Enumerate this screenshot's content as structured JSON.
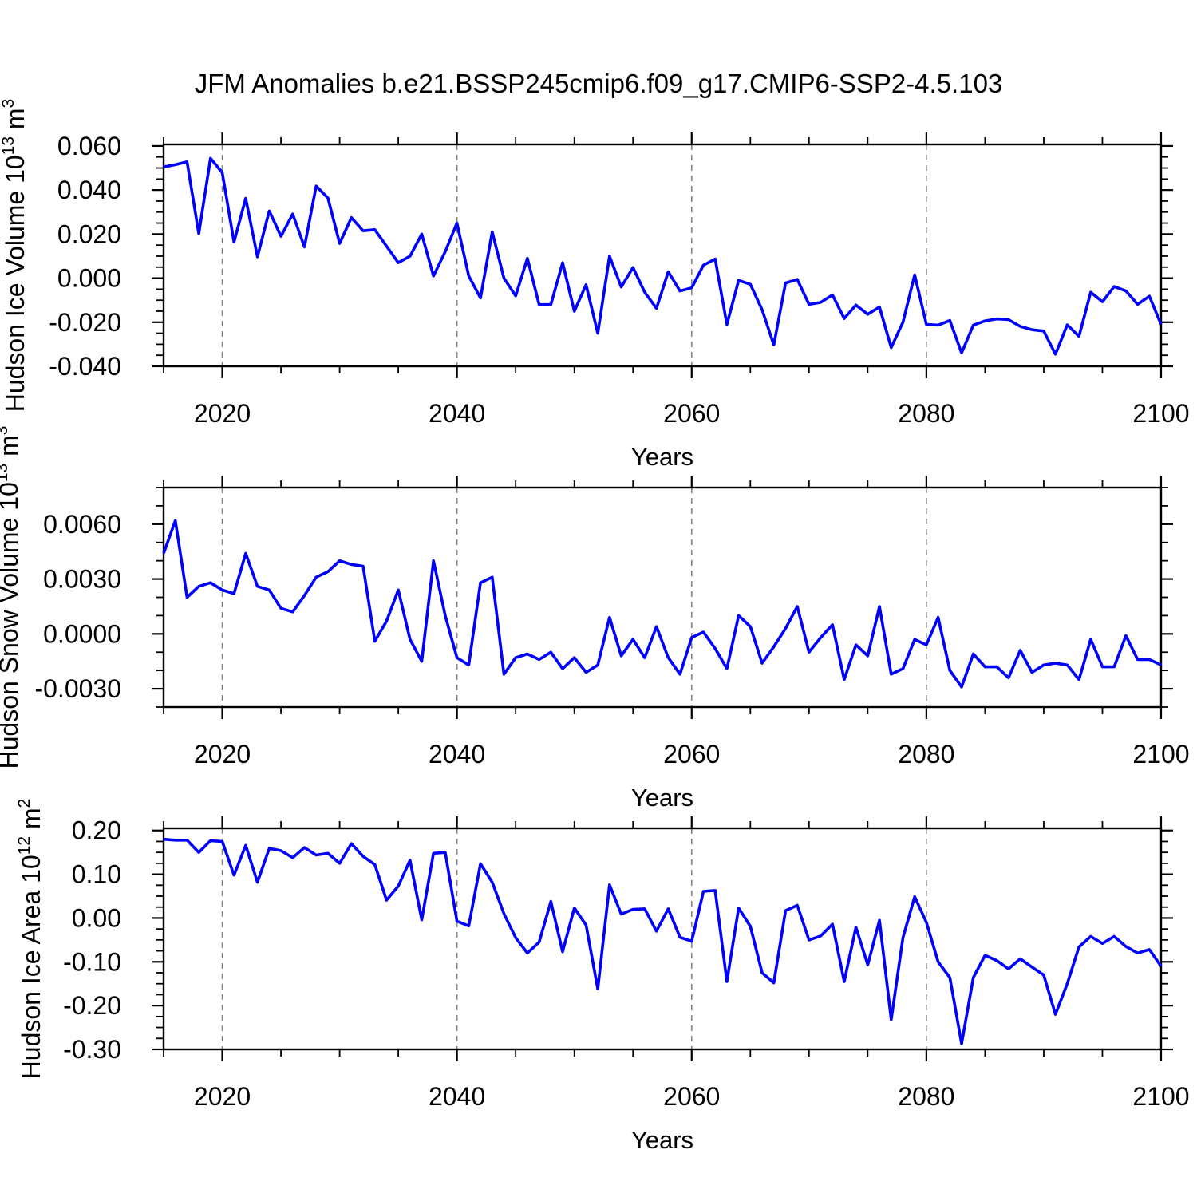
{
  "title": "JFM Anomalies b.e21.BSSP245cmip6.f09_g17.CMIP6-SSP2-4.5.103",
  "background": "#ffffff",
  "text_color": "#000000",
  "grid_color": "#848484",
  "chart_data": [
    {
      "type": "line",
      "name": "hudson-ice-volume",
      "ylabel": "Hudson Ice Volume 10^13^ m^3^",
      "xlabel": "Years",
      "line_color": "#0000ff",
      "x_start": 2015,
      "x_end": 2100,
      "x_step": 1,
      "ylim": [
        -0.04,
        0.0607
      ],
      "ytick_values": [
        0.06,
        0.04,
        0.02,
        0.0,
        -0.02,
        -0.04
      ],
      "ytick_labels": [
        "0.060",
        "0.040",
        "0.020",
        "0.000",
        "-0.020",
        "-0.040"
      ],
      "yminor_step": 0.005,
      "xtick_values": [
        2020,
        2040,
        2060,
        2080,
        2100
      ],
      "xtick_labels": [
        "2020",
        "2040",
        "2060",
        "2080",
        "2100"
      ],
      "xminor_step": 5,
      "x_gridlines": [
        2020,
        2040,
        2060,
        2080
      ],
      "values": [
        0.0505,
        0.0515,
        0.0528,
        0.0202,
        0.0544,
        0.0479,
        0.0164,
        0.0362,
        0.0097,
        0.0305,
        0.019,
        0.0291,
        0.0142,
        0.0418,
        0.0364,
        0.0158,
        0.0275,
        0.0215,
        0.022,
        0.0145,
        0.007,
        0.01,
        0.02,
        0.001,
        0.012,
        0.025,
        0.001,
        -0.009,
        0.021,
        0.0,
        -0.008,
        0.009,
        -0.012,
        -0.012,
        0.007,
        -0.015,
        -0.003,
        -0.025,
        0.01,
        -0.004,
        0.0048,
        -0.0064,
        -0.0137,
        0.0029,
        -0.0058,
        -0.0044,
        0.0059,
        0.0087,
        -0.021,
        -0.001,
        -0.0028,
        -0.0143,
        -0.0303,
        -0.0022,
        -0.0006,
        -0.0119,
        -0.011,
        -0.0076,
        -0.0183,
        -0.0122,
        -0.0164,
        -0.0131,
        -0.0315,
        -0.02,
        0.0015,
        -0.021,
        -0.0213,
        -0.0192,
        -0.0339,
        -0.0213,
        -0.0194,
        -0.0185,
        -0.0188,
        -0.0219,
        -0.0234,
        -0.024,
        -0.0345,
        -0.0212,
        -0.0264,
        -0.0064,
        -0.0107,
        -0.0038,
        -0.0058,
        -0.0119,
        -0.0082,
        -0.021
      ]
    },
    {
      "type": "line",
      "name": "hudson-snow-volume",
      "ylabel": "Hudson Snow Volume 10^13^ m^3^",
      "xlabel": "Years",
      "line_color": "#0000ff",
      "x_start": 2015,
      "x_end": 2100,
      "x_step": 1,
      "ylim": [
        -0.004,
        0.008
      ],
      "ytick_values": [
        0.006,
        0.003,
        0.0,
        -0.003
      ],
      "ytick_labels": [
        "0.0060",
        "0.0030",
        "0.0000",
        "-0.0030"
      ],
      "yminor_step": 0.001,
      "xtick_values": [
        2020,
        2040,
        2060,
        2080,
        2100
      ],
      "xtick_labels": [
        "2020",
        "2040",
        "2060",
        "2080",
        "2100"
      ],
      "xminor_step": 5,
      "x_gridlines": [
        2020,
        2040,
        2060,
        2080
      ],
      "values": [
        0.0044,
        0.0062,
        0.002,
        0.0026,
        0.0028,
        0.0024,
        0.0022,
        0.0044,
        0.0026,
        0.0024,
        0.0014,
        0.0012,
        0.0021,
        0.0031,
        0.0034,
        0.004,
        0.0038,
        0.0037,
        -0.0004,
        0.0007,
        0.0024,
        -0.0003,
        -0.0015,
        0.004,
        0.001,
        -0.0013,
        -0.0017,
        0.0028,
        0.0031,
        -0.0022,
        -0.0013,
        -0.0011,
        -0.0014,
        -0.001,
        -0.0019,
        -0.0013,
        -0.0021,
        -0.0017,
        0.0009,
        -0.0012,
        -0.0003,
        -0.0013,
        0.0004,
        -0.0013,
        -0.0022,
        -0.0002,
        0.0001,
        -0.0008,
        -0.0019,
        0.001,
        0.0004,
        -0.0016,
        -0.0007,
        0.0003,
        0.0015,
        -0.001,
        -0.0002,
        0.0005,
        -0.0025,
        -0.0006,
        -0.0012,
        0.0015,
        -0.0022,
        -0.0019,
        -0.0003,
        -0.0006,
        0.0009,
        -0.002,
        -0.0029,
        -0.0011,
        -0.0018,
        -0.0018,
        -0.0024,
        -0.0009,
        -0.0021,
        -0.0017,
        -0.0016,
        -0.0017,
        -0.0025,
        -0.0003,
        -0.0018,
        -0.0018,
        -0.0001,
        -0.0014,
        -0.0014,
        -0.0017
      ]
    },
    {
      "type": "line",
      "name": "hudson-ice-area",
      "ylabel": "Hudson Ice Area 10^12^ m^2^",
      "xlabel": "Years",
      "line_color": "#0000ff",
      "x_start": 2015,
      "x_end": 2100,
      "x_step": 1,
      "ylim": [
        -0.3,
        0.205
      ],
      "ytick_values": [
        0.2,
        0.1,
        0.0,
        -0.1,
        -0.2,
        -0.3
      ],
      "ytick_labels": [
        "0.20",
        "0.10",
        "0.00",
        "-0.10",
        "-0.20",
        "-0.30"
      ],
      "yminor_step": 0.025,
      "xtick_values": [
        2020,
        2040,
        2060,
        2080,
        2100
      ],
      "xtick_labels": [
        "2020",
        "2040",
        "2060",
        "2080",
        "2100"
      ],
      "xminor_step": 5,
      "x_gridlines": [
        2020,
        2040,
        2060,
        2080
      ],
      "values": [
        0.18,
        0.178,
        0.178,
        0.15,
        0.177,
        0.175,
        0.098,
        0.166,
        0.082,
        0.159,
        0.154,
        0.138,
        0.161,
        0.144,
        0.148,
        0.125,
        0.17,
        0.141,
        0.122,
        0.041,
        0.073,
        0.132,
        -0.004,
        0.148,
        0.15,
        -0.007,
        -0.018,
        0.124,
        0.082,
        0.01,
        -0.045,
        -0.08,
        -0.055,
        0.038,
        -0.077,
        0.023,
        -0.016,
        -0.162,
        0.076,
        0.009,
        0.02,
        0.021,
        -0.03,
        0.021,
        -0.044,
        -0.053,
        0.061,
        0.063,
        -0.145,
        0.023,
        -0.019,
        -0.125,
        -0.148,
        0.017,
        0.029,
        -0.05,
        -0.041,
        -0.014,
        -0.145,
        -0.021,
        -0.107,
        -0.005,
        -0.232,
        -0.045,
        0.049,
        -0.01,
        -0.1,
        -0.136,
        -0.287,
        -0.136,
        -0.085,
        -0.097,
        -0.116,
        -0.093,
        -0.112,
        -0.13,
        -0.22,
        -0.15,
        -0.066,
        -0.042,
        -0.058,
        -0.042,
        -0.065,
        -0.08,
        -0.072,
        -0.11
      ]
    }
  ]
}
